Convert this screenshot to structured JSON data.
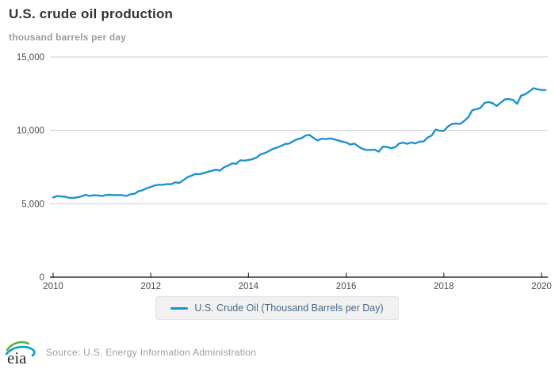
{
  "page": {
    "title": "U.S. crude oil production",
    "subtitle": "thousand barrels per day"
  },
  "legend": {
    "label": "U.S. Crude Oil (Thousand Barrels per Day)"
  },
  "footer": {
    "logo_text": "eia",
    "source": "Source: U.S. Energy Information Administration"
  },
  "colors": {
    "line": "#1d92d1",
    "grid": "#cccccc",
    "axis": "#333333",
    "tick_label": "#4d4d4d",
    "title": "#333333",
    "subtitle": "#9b9b9b",
    "legend_text": "#4a6a8a",
    "legend_bg": "#f1f1f1",
    "source_text": "#9d9d9d",
    "logo_green": "#5cb13a",
    "logo_blue": "#00a0d2",
    "logo_text": "#2b2b2b"
  },
  "chart_data": {
    "type": "line",
    "title": "U.S. crude oil production",
    "xlabel": "",
    "ylabel": "thousand barrels per day",
    "xlim": [
      2010,
      2020
    ],
    "ylim": [
      0,
      15000
    ],
    "x_ticks": [
      2010,
      2012,
      2014,
      2016,
      2018,
      2020
    ],
    "x_tick_labels": [
      "2010",
      "2012",
      "2014",
      "2016",
      "2018",
      "2020"
    ],
    "y_ticks": [
      0,
      5000,
      10000,
      15000
    ],
    "y_tick_labels": [
      "0",
      "5,000",
      "10,000",
      "15,000"
    ],
    "grid": "horizontal",
    "legend_position": "bottom",
    "x_start_year": 2010,
    "x_interval_months": 1,
    "series": [
      {
        "name": "U.S. Crude Oil (Thousand Barrels per Day)",
        "unit": "thousand barrels per day",
        "values": [
          5432,
          5518,
          5498,
          5475,
          5403,
          5404,
          5441,
          5501,
          5613,
          5531,
          5580,
          5571,
          5531,
          5597,
          5609,
          5580,
          5594,
          5584,
          5530,
          5647,
          5681,
          5853,
          5923,
          6062,
          6152,
          6252,
          6291,
          6297,
          6337,
          6332,
          6459,
          6421,
          6602,
          6811,
          6910,
          7031,
          7019,
          7086,
          7169,
          7252,
          7314,
          7260,
          7488,
          7605,
          7754,
          7724,
          7965,
          7944,
          7978,
          8040,
          8155,
          8375,
          8447,
          8592,
          8737,
          8834,
          8936,
          9078,
          9103,
          9268,
          9399,
          9463,
          9648,
          9694,
          9479,
          9315,
          9433,
          9407,
          9452,
          9398,
          9318,
          9235,
          9179,
          9033,
          9103,
          8903,
          8744,
          8670,
          8666,
          8692,
          8549,
          8888,
          8882,
          8784,
          8846,
          9100,
          9169,
          9087,
          9176,
          9110,
          9238,
          9242,
          9510,
          9645,
          10060,
          9979,
          9964,
          10264,
          10442,
          10472,
          10435,
          10647,
          10900,
          11380,
          11440,
          11537,
          11868,
          11936,
          11856,
          11659,
          11902,
          12116,
          12130,
          12078,
          11812,
          12365,
          12463,
          12655,
          12876,
          12799,
          12755,
          12744
        ]
      }
    ]
  }
}
